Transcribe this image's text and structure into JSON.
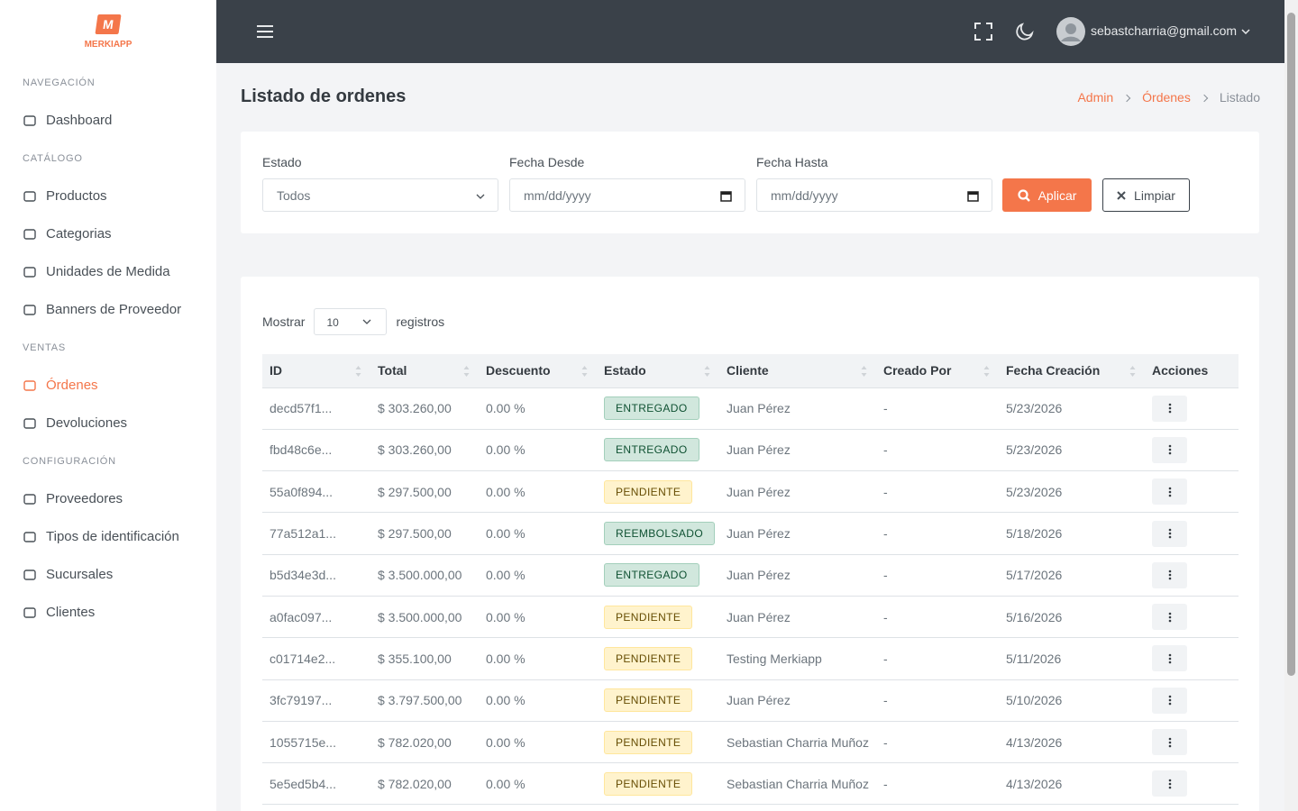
{
  "brand": {
    "mark": "M",
    "name": "MERKIAPP"
  },
  "sidebar": {
    "sections": [
      {
        "title": "NAVEGACIÓN",
        "items": [
          {
            "label": "Dashboard"
          }
        ]
      },
      {
        "title": "CATÁLOGO",
        "items": [
          {
            "label": "Productos"
          },
          {
            "label": "Categorias"
          },
          {
            "label": "Unidades de Medida"
          },
          {
            "label": "Banners de Proveedor"
          }
        ]
      },
      {
        "title": "VENTAS",
        "items": [
          {
            "label": "Órdenes",
            "active": true
          },
          {
            "label": "Devoluciones"
          }
        ]
      },
      {
        "title": "CONFIGURACIÓN",
        "items": [
          {
            "label": "Proveedores"
          },
          {
            "label": "Tipos de identificación"
          },
          {
            "label": "Sucursales"
          },
          {
            "label": "Clientes"
          }
        ]
      }
    ]
  },
  "topbar": {
    "user_email": "sebastcharria@gmail.com"
  },
  "header": {
    "title": "Listado de ordenes",
    "breadcrumb": [
      "Admin",
      "Órdenes",
      "Listado"
    ]
  },
  "filters": {
    "fields": [
      {
        "label": "Estado",
        "value": "Todos",
        "kind": "select"
      },
      {
        "label": "Fecha Desde",
        "value": "mm/dd/yyyy",
        "kind": "date"
      },
      {
        "label": "Fecha Hasta",
        "value": "mm/dd/yyyy",
        "kind": "date"
      }
    ],
    "apply": "Aplicar",
    "clear": "Limpiar"
  },
  "table": {
    "show_label": "Mostrar",
    "page_size": 10,
    "records_label": "registros",
    "columns": [
      "ID",
      "Total",
      "Descuento",
      "Estado",
      "Cliente",
      "Creado Por",
      "Fecha Creación",
      "Acciones"
    ],
    "rows": [
      [
        "decd57f1...",
        "$ 303.260,00",
        "0.00 %",
        {
          "label": "ENTREGADO",
          "tone": "success"
        },
        "Juan Pérez",
        "-",
        "5/23/2026"
      ],
      [
        "fbd48c6e...",
        "$ 303.260,00",
        "0.00 %",
        {
          "label": "ENTREGADO",
          "tone": "success"
        },
        "Juan Pérez",
        "-",
        "5/23/2026"
      ],
      [
        "55a0f894...",
        "$ 297.500,00",
        "0.00 %",
        {
          "label": "PENDIENTE",
          "tone": "warning"
        },
        "Juan Pérez",
        "-",
        "5/23/2026"
      ],
      [
        "77a512a1...",
        "$ 297.500,00",
        "0.00 %",
        {
          "label": "REEMBOLSADO",
          "tone": "success"
        },
        "Juan Pérez",
        "-",
        "5/18/2026"
      ],
      [
        "b5d34e3d...",
        "$ 3.500.000,00",
        "0.00 %",
        {
          "label": "ENTREGADO",
          "tone": "success"
        },
        "Juan Pérez",
        "-",
        "5/17/2026"
      ],
      [
        "a0fac097...",
        "$ 3.500.000,00",
        "0.00 %",
        {
          "label": "PENDIENTE",
          "tone": "warning"
        },
        "Juan Pérez",
        "-",
        "5/16/2026"
      ],
      [
        "c01714e2...",
        "$ 355.100,00",
        "0.00 %",
        {
          "label": "PENDIENTE",
          "tone": "warning"
        },
        "Testing Merkiapp",
        "-",
        "5/11/2026"
      ],
      [
        "3fc79197...",
        "$ 3.797.500,00",
        "0.00 %",
        {
          "label": "PENDIENTE",
          "tone": "warning"
        },
        "Juan Pérez",
        "-",
        "5/10/2026"
      ],
      [
        "1055715e...",
        "$ 782.020,00",
        "0.00 %",
        {
          "label": "PENDIENTE",
          "tone": "warning"
        },
        "Sebastian Charria Muñoz",
        "-",
        "4/13/2026"
      ],
      [
        "5e5ed5b4...",
        "$ 782.020,00",
        "0.00 %",
        {
          "label": "PENDIENTE",
          "tone": "warning"
        },
        "Sebastian Charria Muñoz",
        "-",
        "4/13/2026"
      ]
    ]
  }
}
